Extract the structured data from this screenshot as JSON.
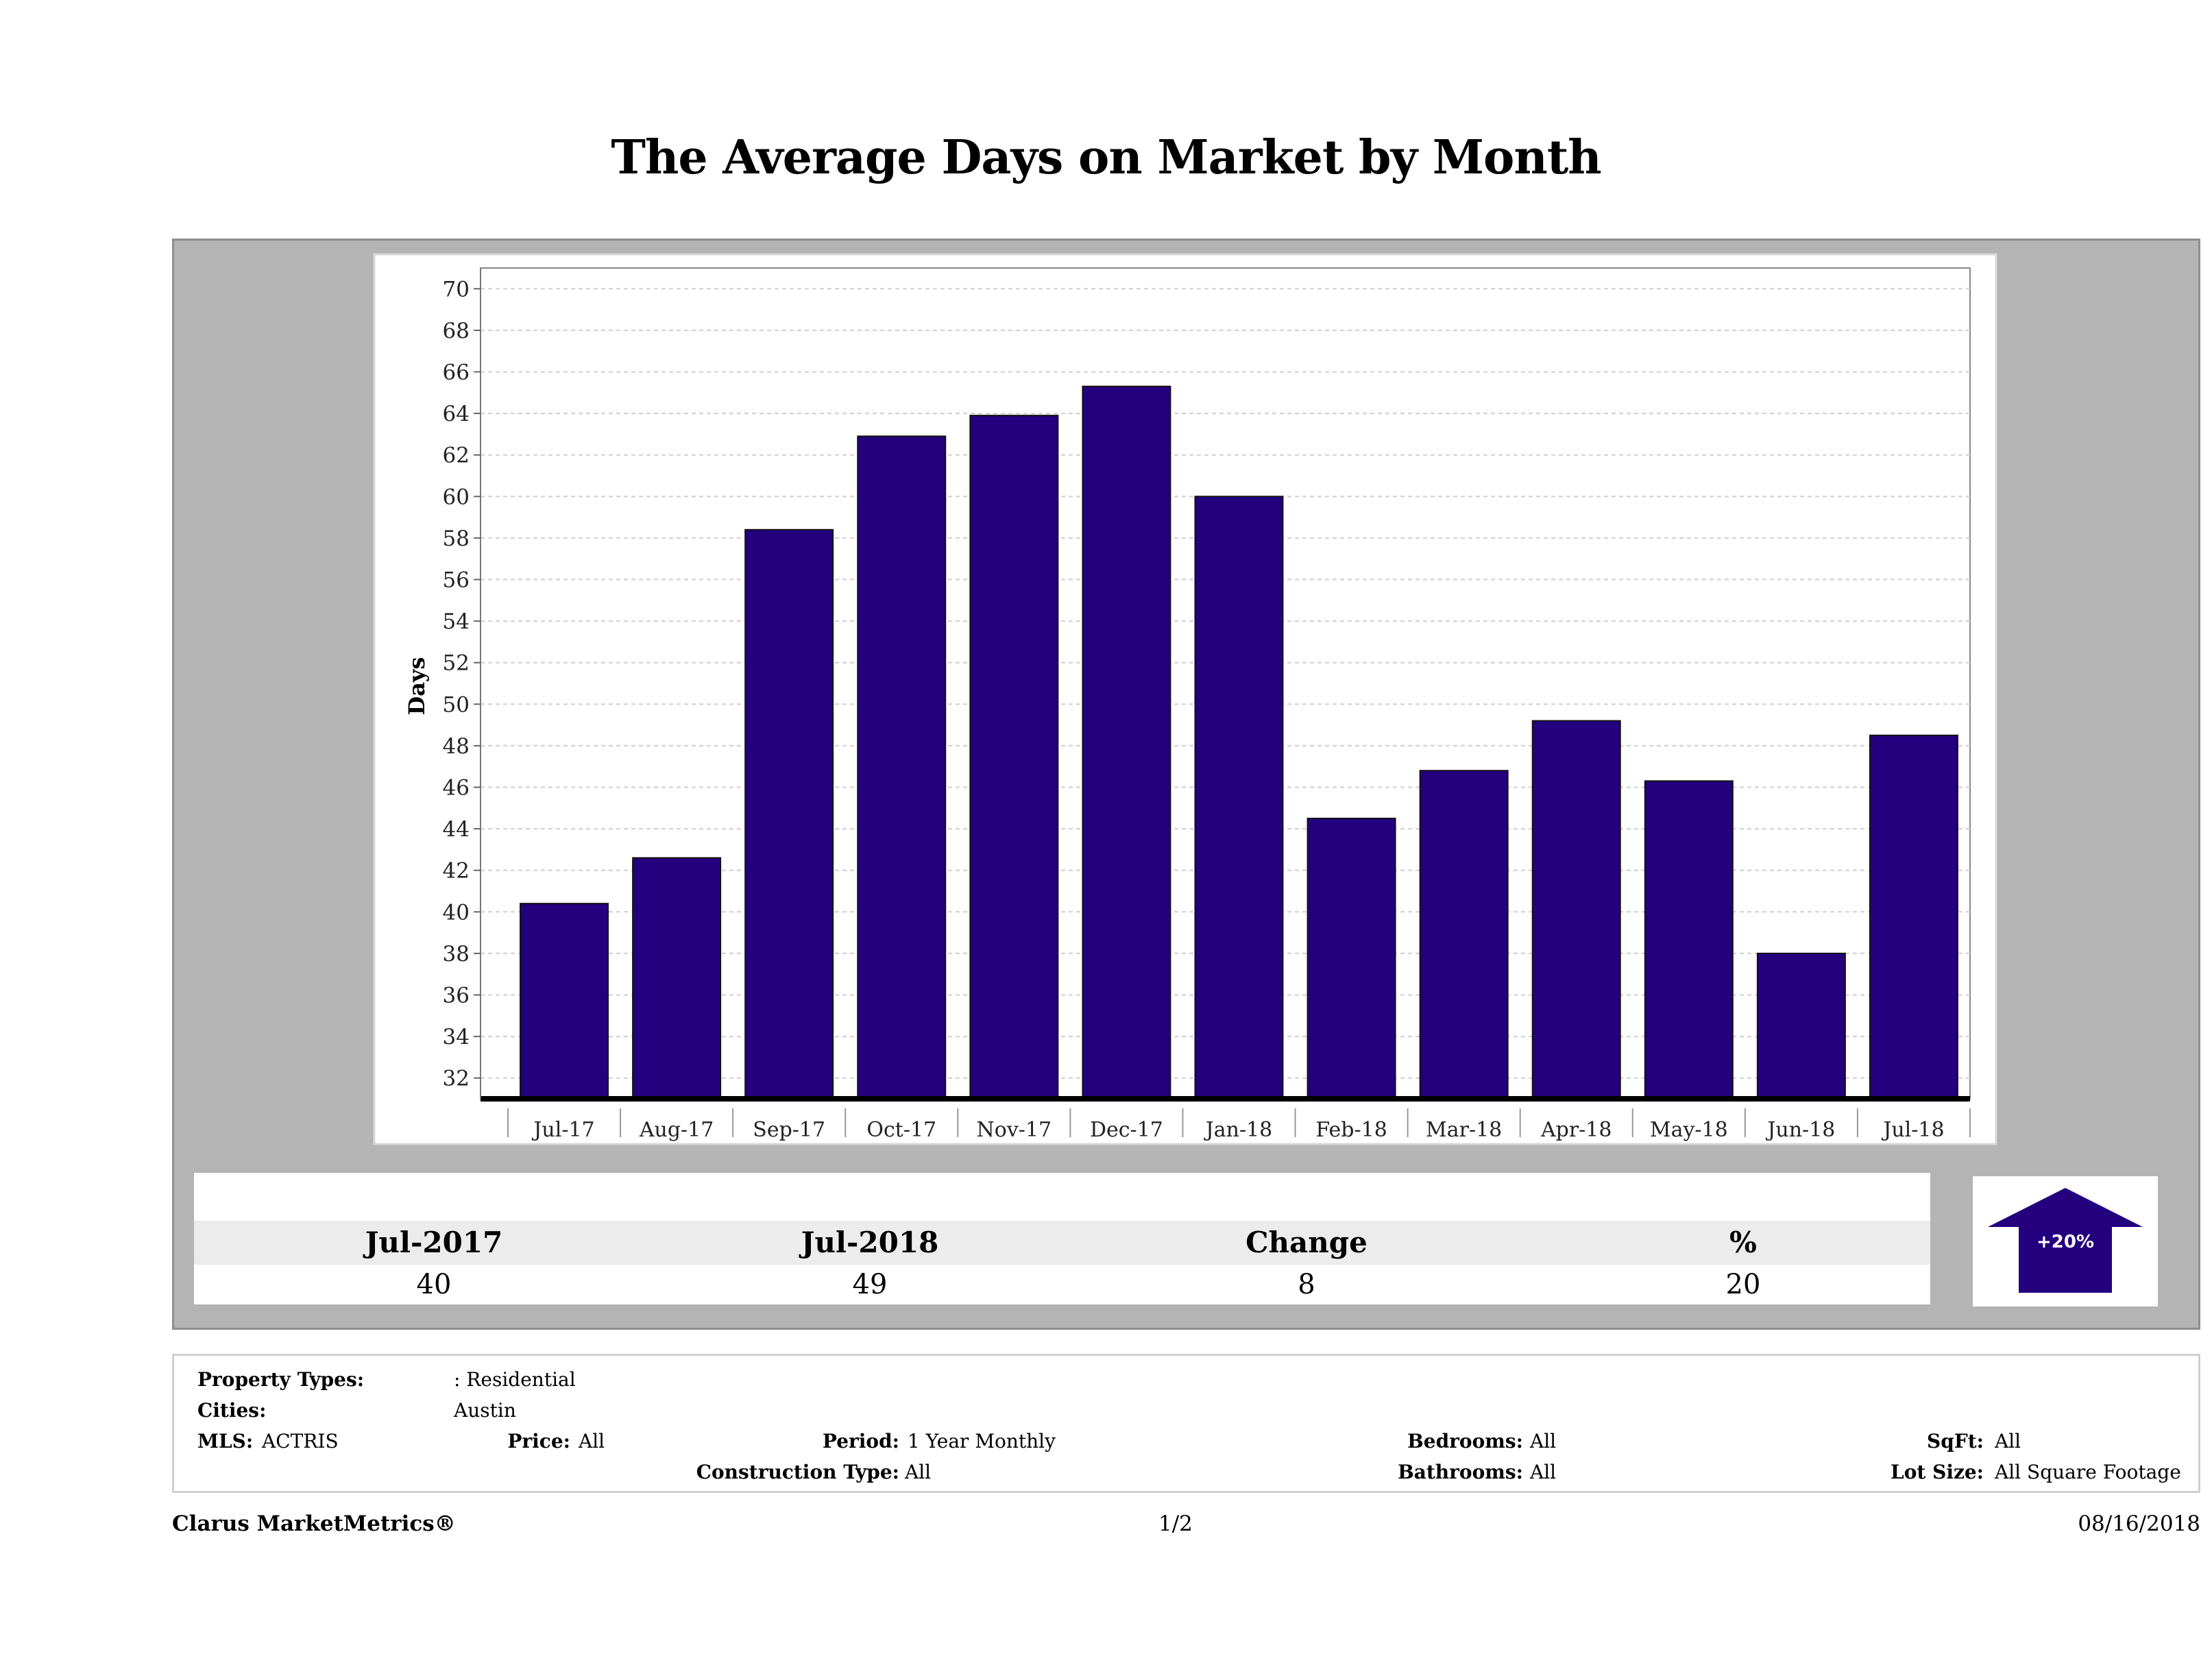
{
  "title": "The Average Days on Market by Month",
  "chart_data": {
    "type": "bar",
    "title": "The Average Days on Market by Month",
    "ylabel": "Days",
    "xlabel": "",
    "categories": [
      "Jul-17",
      "Aug-17",
      "Sep-17",
      "Oct-17",
      "Nov-17",
      "Dec-17",
      "Jan-18",
      "Feb-18",
      "Mar-18",
      "Apr-18",
      "May-18",
      "Jun-18",
      "Jul-18"
    ],
    "values": [
      40.4,
      42.6,
      58.4,
      62.9,
      63.9,
      65.3,
      60.0,
      44.5,
      46.8,
      49.2,
      46.3,
      38.0,
      48.5
    ],
    "ylim": [
      31,
      71
    ],
    "yticks": [
      32,
      34,
      36,
      38,
      40,
      42,
      44,
      46,
      48,
      50,
      52,
      54,
      56,
      58,
      60,
      62,
      64,
      66,
      68,
      70
    ],
    "grid": true,
    "bar_color": "#24007f"
  },
  "summary": {
    "headers": [
      "Jul-2017",
      "Jul-2018",
      "Change",
      "%"
    ],
    "values": [
      "40",
      "49",
      "8",
      "20"
    ],
    "badge": "+20%",
    "badge_color": "#24007f"
  },
  "filters": {
    "property_types_label": "Property Types:",
    "property_types_value": ": Residential",
    "cities_label": "Cities:",
    "cities_value": "Austin",
    "mls_label": "MLS:",
    "mls_value": "ACTRIS",
    "price_label": "Price:",
    "price_value": "All",
    "period_label": "Period:",
    "period_value": "1 Year Monthly",
    "construction_label": "Construction Type:",
    "construction_value": "All",
    "bedrooms_label": "Bedrooms:",
    "bedrooms_value": "All",
    "bathrooms_label": "Bathrooms:",
    "bathrooms_value": "All",
    "sqft_label": "SqFt:",
    "sqft_value": "All",
    "lotsize_label": "Lot Size:",
    "lotsize_value": "All Square Footage"
  },
  "footer": {
    "brand": "Clarus MarketMetrics®",
    "page": "1/2",
    "date": "08/16/2018"
  }
}
